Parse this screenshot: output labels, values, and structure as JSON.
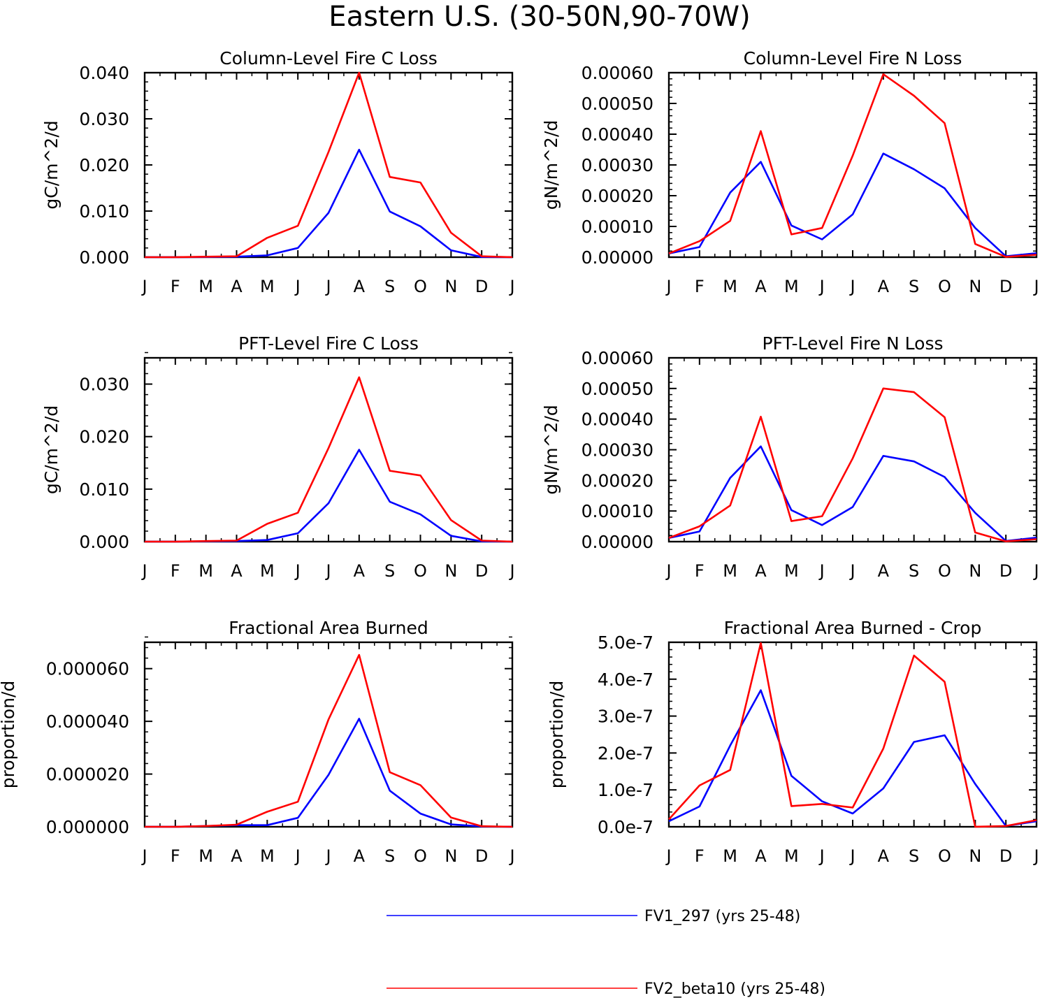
{
  "figure_title": "Eastern U.S. (30-50N,90-70W)",
  "colors": {
    "FV1_297": "#0000ff",
    "FV2_beta10": "#ff0000",
    "axis": "#000000"
  },
  "legend": [
    {
      "label": "FV1_297 (yrs 25-48)",
      "color": "#0000ff"
    },
    {
      "label": "FV2_beta10 (yrs 25-48)",
      "color": "#ff0000"
    }
  ],
  "chart_data": [
    {
      "type": "line",
      "title": "Column-Level Fire C Loss",
      "ylabel": "gC/m^2/d",
      "categories": [
        "J",
        "F",
        "M",
        "A",
        "M",
        "J",
        "J",
        "A",
        "S",
        "O",
        "N",
        "D",
        "J"
      ],
      "ylim": [
        0,
        0.04
      ],
      "yticks": [
        0,
        0.01,
        0.02,
        0.03,
        0.04
      ],
      "yticklabels": [
        "0.000",
        "0.010",
        "0.020",
        "0.030",
        "0.040"
      ],
      "yminor": 0.002,
      "series": [
        {
          "name": "FV1_297 (yrs 25-48)",
          "color": "#0000ff",
          "values": [
            0,
            0,
            5e-05,
            0.0001,
            0.0004,
            0.002,
            0.0096,
            0.0233,
            0.0099,
            0.0067,
            0.0015,
            5e-05,
            0
          ]
        },
        {
          "name": "FV2_beta10 (yrs 25-48)",
          "color": "#ff0000",
          "values": [
            0,
            0,
            0.0001,
            0.0002,
            0.0042,
            0.0068,
            0.0228,
            0.04,
            0.0174,
            0.0162,
            0.0053,
            0.0002,
            0
          ]
        }
      ]
    },
    {
      "type": "line",
      "title": "Column-Level Fire N Loss",
      "ylabel": "gN/m^2/d",
      "categories": [
        "J",
        "F",
        "M",
        "A",
        "M",
        "J",
        "J",
        "A",
        "S",
        "O",
        "N",
        "D",
        "J"
      ],
      "ylim": [
        0,
        0.0006
      ],
      "yticks": [
        0,
        0.0001,
        0.0002,
        0.0003,
        0.0004,
        0.0005,
        0.0006
      ],
      "yticklabels": [
        "0.00000",
        "0.00010",
        "0.00020",
        "0.00030",
        "0.00040",
        "0.00050",
        "0.00060"
      ],
      "yminor": 2e-05,
      "series": [
        {
          "name": "FV1_297 (yrs 25-48)",
          "color": "#0000ff",
          "values": [
            1.2e-05,
            3.3e-05,
            0.00021,
            0.00031,
            0.000103,
            5.8e-05,
            0.000139,
            0.000337,
            0.000286,
            0.000224,
            9.5e-05,
            3e-06,
            1.3e-05
          ]
        },
        {
          "name": "FV2_beta10 (yrs 25-48)",
          "color": "#ff0000",
          "values": [
            1.2e-05,
            5.2e-05,
            0.000118,
            0.00041,
            7.4e-05,
            9.5e-05,
            0.00033,
            0.000595,
            0.000525,
            0.000436,
            4.3e-05,
            1e-06,
            8e-06
          ]
        }
      ]
    },
    {
      "type": "line",
      "title": "PFT-Level Fire C Loss",
      "ylabel": "gC/m^2/d",
      "categories": [
        "J",
        "F",
        "M",
        "A",
        "M",
        "J",
        "J",
        "A",
        "S",
        "O",
        "N",
        "D",
        "J"
      ],
      "ylim": [
        0,
        0.035
      ],
      "yticks": [
        0,
        0.01,
        0.02,
        0.03
      ],
      "yticklabels": [
        "0.000",
        "0.010",
        "0.020",
        "0.030"
      ],
      "yminor": 0.002,
      "series": [
        {
          "name": "FV1_297 (yrs 25-48)",
          "color": "#0000ff",
          "values": [
            0,
            0,
            5e-05,
            0.0001,
            0.0003,
            0.0016,
            0.0073,
            0.0175,
            0.0076,
            0.0052,
            0.0011,
            5e-05,
            0
          ]
        },
        {
          "name": "FV2_beta10 (yrs 25-48)",
          "color": "#ff0000",
          "values": [
            0,
            0,
            0.0001,
            0.0002,
            0.0034,
            0.0055,
            0.0178,
            0.0313,
            0.0135,
            0.0126,
            0.0041,
            0.0002,
            0
          ]
        }
      ]
    },
    {
      "type": "line",
      "title": "PFT-Level Fire N Loss",
      "ylabel": "gN/m^2/d",
      "categories": [
        "J",
        "F",
        "M",
        "A",
        "M",
        "J",
        "J",
        "A",
        "S",
        "O",
        "N",
        "D",
        "J"
      ],
      "ylim": [
        0,
        0.0006
      ],
      "yticks": [
        0,
        0.0001,
        0.0002,
        0.0003,
        0.0004,
        0.0005,
        0.0006
      ],
      "yticklabels": [
        "0.00000",
        "0.00010",
        "0.00020",
        "0.00030",
        "0.00040",
        "0.00050",
        "0.00060"
      ],
      "yminor": 2e-05,
      "series": [
        {
          "name": "FV1_297 (yrs 25-48)",
          "color": "#0000ff",
          "values": [
            1.2e-05,
            3.3e-05,
            0.000208,
            0.000311,
            0.000103,
            5.4e-05,
            0.000113,
            0.00028,
            0.000262,
            0.000211,
            9.4e-05,
            2e-06,
            1.3e-05
          ]
        },
        {
          "name": "FV2_beta10 (yrs 25-48)",
          "color": "#ff0000",
          "values": [
            1.2e-05,
            5e-05,
            0.000118,
            0.000408,
            6.7e-05,
            8.3e-05,
            0.000272,
            0.0005,
            0.000488,
            0.000406,
            3e-05,
            1e-06,
            8e-06
          ]
        }
      ]
    },
    {
      "type": "line",
      "title": "Fractional Area Burned",
      "ylabel": "proportion/d",
      "categories": [
        "J",
        "F",
        "M",
        "A",
        "M",
        "J",
        "J",
        "A",
        "S",
        "O",
        "N",
        "D",
        "J"
      ],
      "ylim": [
        0,
        7e-05
      ],
      "yticks": [
        0,
        2e-05,
        4e-05,
        6e-05
      ],
      "yticklabels": [
        "0.000000",
        "0.000020",
        "0.000040",
        "0.000060"
      ],
      "yminor": 4e-06,
      "series": [
        {
          "name": "FV1_297 (yrs 25-48)",
          "color": "#0000ff",
          "values": [
            0,
            0,
            3e-07,
            6e-07,
            6e-07,
            3.4e-06,
            1.97e-05,
            4.1e-05,
            1.37e-05,
            5e-06,
            9e-07,
            1e-07,
            0
          ]
        },
        {
          "name": "FV2_beta10 (yrs 25-48)",
          "color": "#ff0000",
          "values": [
            0,
            0,
            3e-07,
            8e-07,
            5.7e-06,
            9.5e-06,
            4.07e-05,
            6.52e-05,
            2.07e-05,
            1.58e-05,
            3.5e-06,
            2e-07,
            0
          ]
        }
      ]
    },
    {
      "type": "line",
      "title": "Fractional Area Burned - Crop",
      "ylabel": "proportion/d",
      "categories": [
        "J",
        "F",
        "M",
        "A",
        "M",
        "J",
        "J",
        "A",
        "S",
        "O",
        "N",
        "D",
        "J"
      ],
      "ylim": [
        0,
        5e-07
      ],
      "yticks": [
        0,
        1e-07,
        2e-07,
        3e-07,
        4e-07,
        5e-07
      ],
      "yticklabels": [
        "0.0e-7",
        "1.0e-7",
        "2.0e-7",
        "3.0e-7",
        "4.0e-7",
        "5.0e-7"
      ],
      "yminor": 2e-08,
      "series": [
        {
          "name": "FV1_297 (yrs 25-48)",
          "color": "#0000ff",
          "values": [
            1.5e-08,
            5.5e-08,
            2.2e-07,
            3.7e-07,
            1.38e-07,
            6.9e-08,
            3.6e-08,
            1.04e-07,
            2.3e-07,
            2.48e-07,
            1.16e-07,
            2e-09,
            1.5e-08
          ]
        },
        {
          "name": "FV2_beta10 (yrs 25-48)",
          "color": "#ff0000",
          "values": [
            2e-08,
            1.12e-07,
            1.54e-07,
            4.98e-07,
            5.6e-08,
            6.2e-08,
            5.2e-08,
            2.12e-07,
            4.64e-07,
            3.93e-07,
            0,
            2e-09,
            1.8e-08
          ]
        }
      ]
    }
  ]
}
